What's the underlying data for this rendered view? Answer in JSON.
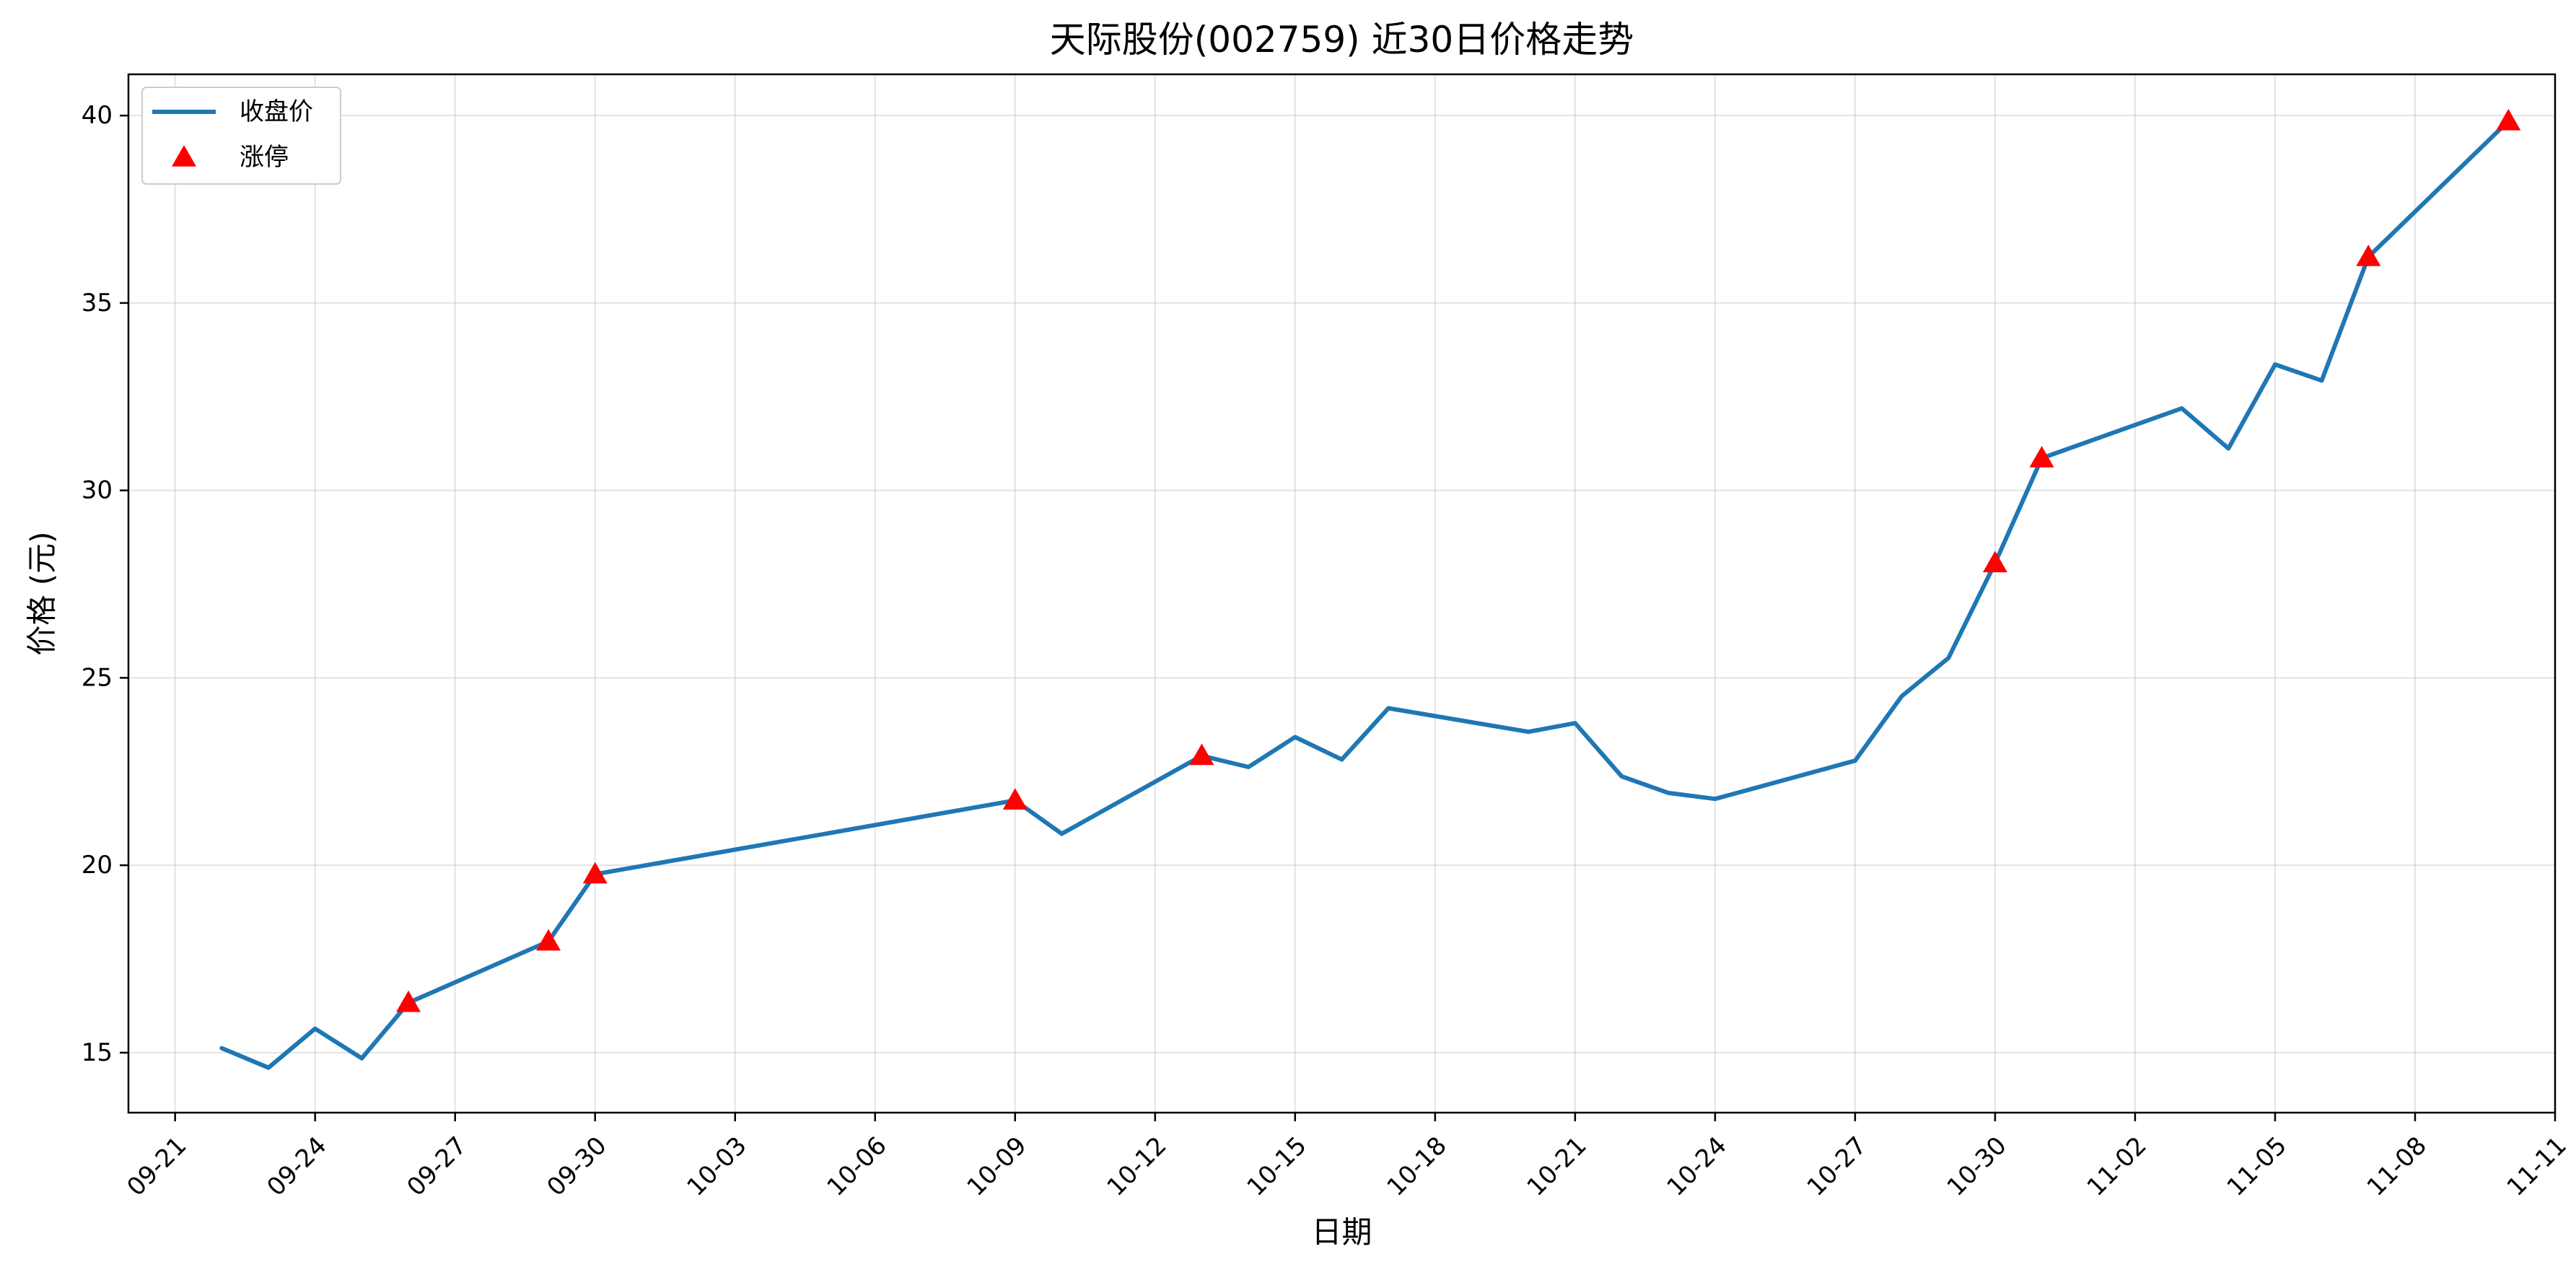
{
  "chart_data": {
    "type": "line",
    "title": "天际股份(002759) 近30日价格走势",
    "xlabel": "日期",
    "ylabel": "价格 (元)",
    "grid": true,
    "legend_position": "top-left",
    "x_axis_type": "date",
    "x_date_format": "MM-DD",
    "xlim": [
      "2025-09-20",
      "2025-11-11"
    ],
    "x_ticks": [
      "2025-09-21",
      "2025-09-24",
      "2025-09-27",
      "2025-09-30",
      "2025-10-03",
      "2025-10-06",
      "2025-10-09",
      "2025-10-12",
      "2025-10-15",
      "2025-10-18",
      "2025-10-21",
      "2025-10-24",
      "2025-10-27",
      "2025-10-30",
      "2025-11-02",
      "2025-11-05",
      "2025-11-08",
      "2025-11-11"
    ],
    "x_tick_labels": [
      "09-21",
      "09-24",
      "09-27",
      "09-30",
      "10-03",
      "10-06",
      "10-09",
      "10-12",
      "10-15",
      "10-18",
      "10-21",
      "10-24",
      "10-27",
      "10-30",
      "11-02",
      "11-05",
      "11-08",
      "11-11"
    ],
    "ylim": [
      13.4,
      41.1
    ],
    "y_ticks": [
      15,
      20,
      25,
      30,
      35,
      40
    ],
    "y_tick_labels": [
      "15",
      "20",
      "25",
      "30",
      "35",
      "40"
    ],
    "series": [
      {
        "name": "收盘价",
        "kind": "line",
        "color": "#1f77b4",
        "points": [
          {
            "x": "2025-09-22",
            "y": 15.12
          },
          {
            "x": "2025-09-23",
            "y": 14.6
          },
          {
            "x": "2025-09-24",
            "y": 15.64
          },
          {
            "x": "2025-09-25",
            "y": 14.85
          },
          {
            "x": "2025-09-26",
            "y": 16.33
          },
          {
            "x": "2025-09-29",
            "y": 17.97
          },
          {
            "x": "2025-09-30",
            "y": 19.76
          },
          {
            "x": "2025-10-09",
            "y": 21.73
          },
          {
            "x": "2025-10-10",
            "y": 20.84
          },
          {
            "x": "2025-10-13",
            "y": 22.92
          },
          {
            "x": "2025-10-14",
            "y": 22.62
          },
          {
            "x": "2025-10-15",
            "y": 23.42
          },
          {
            "x": "2025-10-16",
            "y": 22.82
          },
          {
            "x": "2025-10-17",
            "y": 24.19
          },
          {
            "x": "2025-10-20",
            "y": 23.56
          },
          {
            "x": "2025-10-21",
            "y": 23.79
          },
          {
            "x": "2025-10-22",
            "y": 22.37
          },
          {
            "x": "2025-10-23",
            "y": 21.93
          },
          {
            "x": "2025-10-24",
            "y": 21.77
          },
          {
            "x": "2025-10-27",
            "y": 22.79
          },
          {
            "x": "2025-10-28",
            "y": 24.51
          },
          {
            "x": "2025-10-29",
            "y": 25.53
          },
          {
            "x": "2025-10-30",
            "y": 28.06
          },
          {
            "x": "2025-10-31",
            "y": 30.86
          },
          {
            "x": "2025-11-03",
            "y": 32.19
          },
          {
            "x": "2025-11-04",
            "y": 31.12
          },
          {
            "x": "2025-11-05",
            "y": 33.36
          },
          {
            "x": "2025-11-06",
            "y": 32.93
          },
          {
            "x": "2025-11-07",
            "y": 36.23
          },
          {
            "x": "2025-11-10",
            "y": 39.85
          }
        ]
      },
      {
        "name": "涨停",
        "kind": "scatter",
        "marker": "triangle-up",
        "color": "#ff0000",
        "points": [
          {
            "x": "2025-09-26",
            "y": 16.33
          },
          {
            "x": "2025-09-29",
            "y": 17.97
          },
          {
            "x": "2025-09-30",
            "y": 19.76
          },
          {
            "x": "2025-10-09",
            "y": 21.73
          },
          {
            "x": "2025-10-13",
            "y": 22.92
          },
          {
            "x": "2025-10-30",
            "y": 28.06
          },
          {
            "x": "2025-10-31",
            "y": 30.86
          },
          {
            "x": "2025-11-07",
            "y": 36.23
          },
          {
            "x": "2025-11-10",
            "y": 39.85
          }
        ]
      }
    ]
  }
}
